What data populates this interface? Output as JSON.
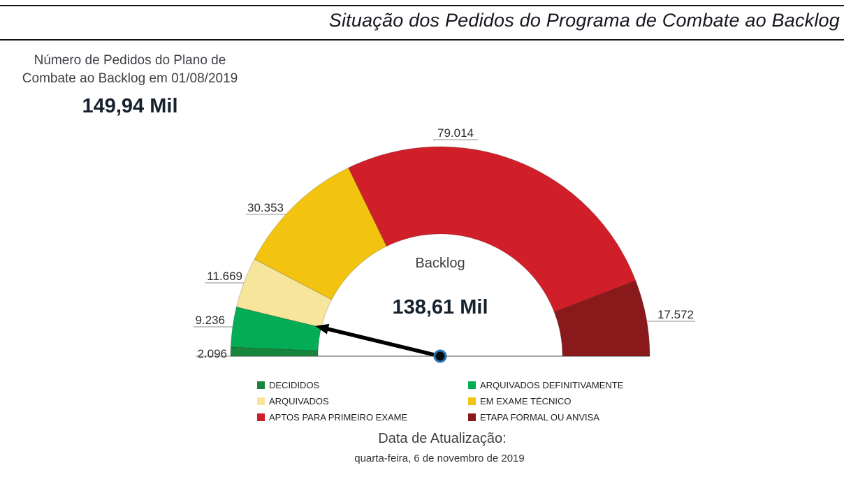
{
  "page": {
    "title": "Situação dos Pedidos do Programa de Combate ao Backlog"
  },
  "kpi": {
    "label_line1": "Número de Pedidos do Plano de",
    "label_line2": "Combate ao Backlog em 01/08/2019",
    "value": "149,94 Mil"
  },
  "chart_data": {
    "type": "gauge",
    "title": "Situação dos Pedidos do Programa de Combate ao Backlog",
    "center_label": "Backlog",
    "center_value": "138,61 Mil",
    "total": 149940,
    "needle_value": 138608,
    "needle_measured_from": "right",
    "legend_position": "bottom",
    "axis": {
      "start_angle_deg": 180,
      "end_angle_deg": 0
    },
    "segments": [
      {
        "name": "DECIDIDOS",
        "value": 2096,
        "label": "2.096",
        "color": "#17853c"
      },
      {
        "name": "ARQUIVADOS DEFINITIVAMENTE",
        "value": 9236,
        "label": "9.236",
        "color": "#04ad55"
      },
      {
        "name": "ARQUIVADOS",
        "value": 11669,
        "label": "11.669",
        "color": "#f8e59c"
      },
      {
        "name": "EM EXAME TÉCNICO",
        "value": 30353,
        "label": "30.353",
        "color": "#f3c40f"
      },
      {
        "name": "APTOS PARA PRIMEIRO EXAME",
        "value": 79014,
        "label": "79.014",
        "color": "#d01f28"
      },
      {
        "name": "ETAPA FORMAL OU ANVISA",
        "value": 17572,
        "label": "17.572",
        "color": "#8a191c"
      }
    ],
    "colors": {
      "needle": "#000000",
      "pivot_ring": "#2e75b6",
      "baseline": "#4d4d4d"
    }
  },
  "footer": {
    "label": "Data de Atualização:",
    "date": "quarta-feira, 6 de novembro de 2019"
  }
}
